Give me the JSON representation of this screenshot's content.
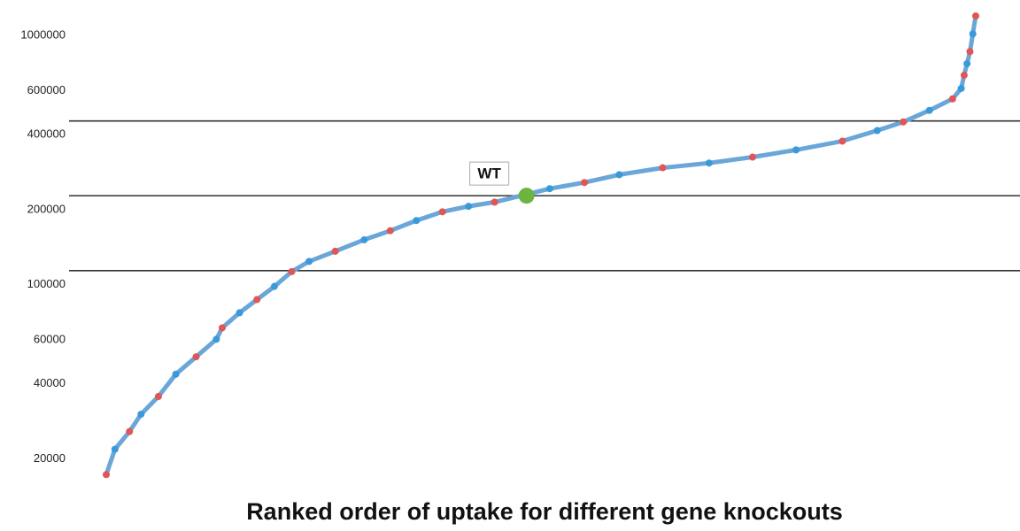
{
  "chart_data": {
    "type": "scatter",
    "title": "Ranked order  of uptake  for different gene knockouts",
    "log_scale_y": true,
    "xlim": [
      0,
      300
    ],
    "ylim": [
      14000,
      1260000
    ],
    "yticks": [
      20000,
      40000,
      60000,
      100000,
      200000,
      400000,
      600000,
      1000000
    ],
    "point_colors": [
      "#e05555",
      "#3a9ad9"
    ],
    "line_color": "#6aa6d8",
    "x": [
      0,
      3,
      8,
      12,
      18,
      24,
      31,
      38,
      40,
      46,
      52,
      58,
      64,
      70,
      79,
      89,
      98,
      107,
      116,
      125,
      134,
      153,
      165,
      177,
      192,
      208,
      223,
      238,
      254,
      266,
      275,
      284,
      292,
      295,
      296,
      297,
      298,
      299,
      300
    ],
    "values": [
      17000,
      21500,
      25300,
      29700,
      35000,
      43000,
      50500,
      59400,
      66000,
      75900,
      85700,
      96800,
      111000,
      122000,
      134000,
      149000,
      162000,
      178000,
      193000,
      203000,
      211000,
      239000,
      253000,
      272000,
      290000,
      303000,
      320000,
      342000,
      371000,
      409000,
      443000,
      493000,
      548000,
      604000,
      682000,
      759000,
      849000,
      1000000,
      1180000
    ],
    "reference_lines": [
      447000,
      224000,
      112000
    ],
    "reference_color": "#333333",
    "wt": {
      "label": "WT",
      "x": 145,
      "value": 224000,
      "color": "#6db33f"
    }
  }
}
